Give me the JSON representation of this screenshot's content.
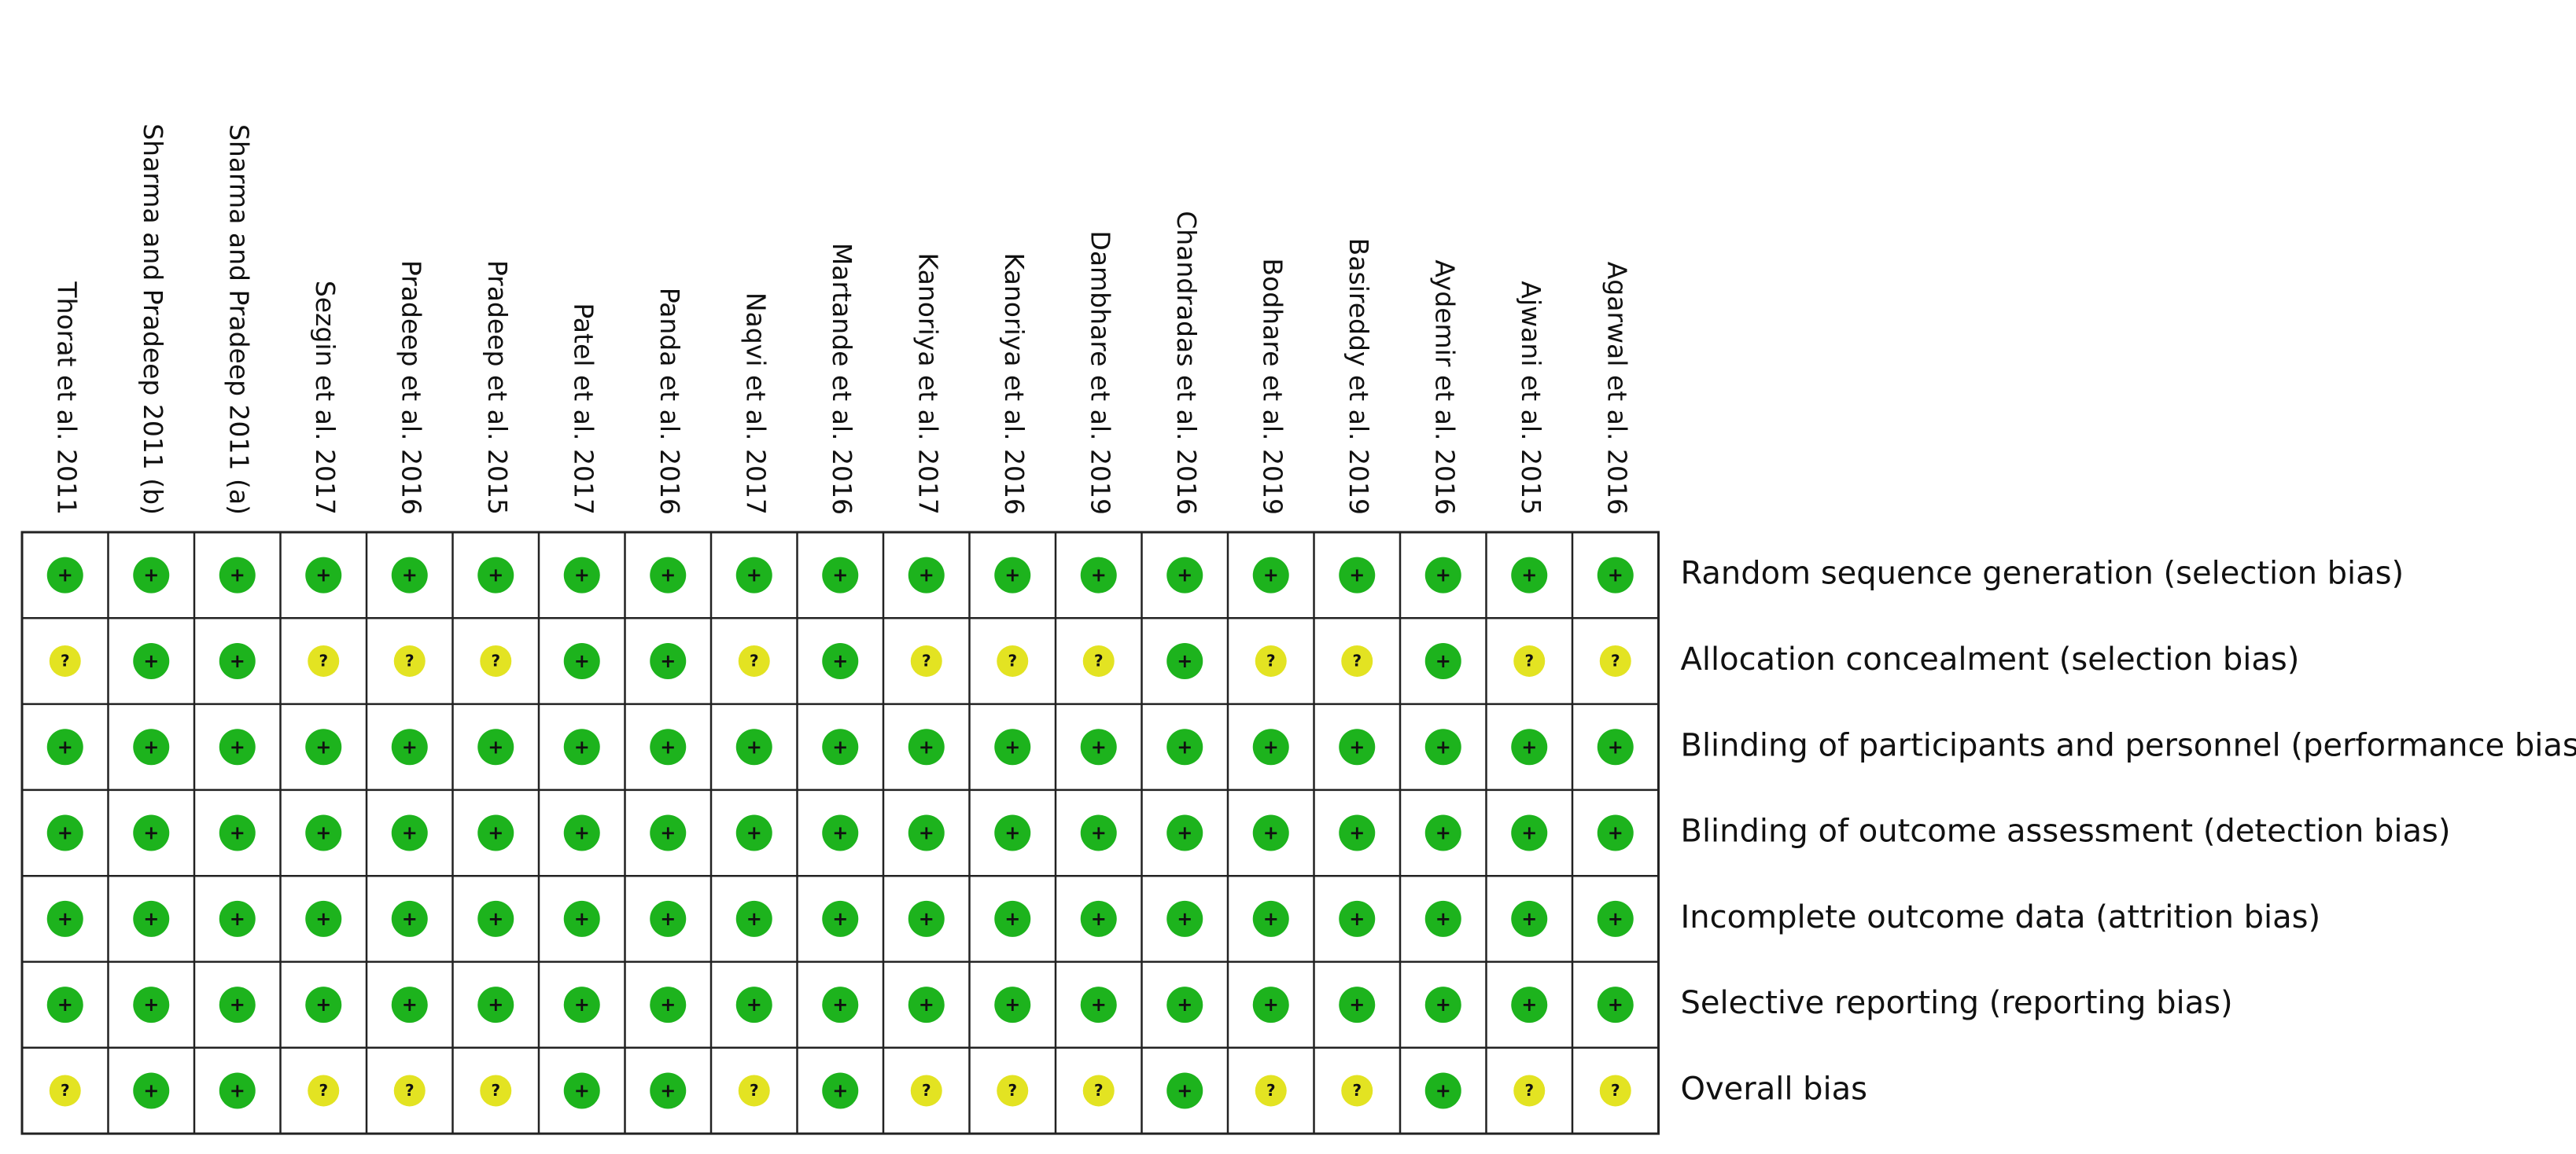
{
  "chart_data": {
    "type": "table",
    "studies": [
      "Thorat et al. 2011",
      "Sharma and Pradeep 2011 (b)",
      "Sharma and Pradeep 2011 (a)",
      "Sezgin et al. 2017",
      "Pradeep et al. 2016",
      "Pradeep et al. 2015",
      "Patel et al. 2017",
      "Panda et al. 2016",
      "Naqvi et al. 2017",
      "Martande et al. 2016",
      "Kanoriya et al. 2017",
      "Kanoriya et al. 2016",
      "Dambhare et al. 2019",
      "Chandradas et al. 2016",
      "Bodhare et al. 2019",
      "Basireddy et al. 2019",
      "Aydemir et al. 2016",
      "Ajwani et al. 2015",
      "Agarwal et al. 2016"
    ],
    "domains": [
      "Random sequence generation (selection bias)",
      "Allocation concealment (selection bias)",
      "Blinding of participants and personnel (performance bias)",
      "Blinding of outcome assessment (detection bias)",
      "Incomplete outcome data (attrition bias)",
      "Selective reporting (reporting bias)",
      "Overall bias"
    ],
    "legend": {
      "low": {
        "symbol": "+",
        "color": "#1db31d",
        "icon": "plus-icon"
      },
      "unclear": {
        "symbol": "?",
        "color": "#e3e322",
        "icon": "question-icon"
      }
    },
    "judgements": [
      [
        "low",
        "low",
        "low",
        "low",
        "low",
        "low",
        "low",
        "low",
        "low",
        "low",
        "low",
        "low",
        "low",
        "low",
        "low",
        "low",
        "low",
        "low",
        "low"
      ],
      [
        "unclear",
        "low",
        "low",
        "unclear",
        "unclear",
        "unclear",
        "low",
        "low",
        "unclear",
        "low",
        "unclear",
        "unclear",
        "unclear",
        "low",
        "unclear",
        "unclear",
        "low",
        "unclear",
        "unclear"
      ],
      [
        "low",
        "low",
        "low",
        "low",
        "low",
        "low",
        "low",
        "low",
        "low",
        "low",
        "low",
        "low",
        "low",
        "low",
        "low",
        "low",
        "low",
        "low",
        "low"
      ],
      [
        "low",
        "low",
        "low",
        "low",
        "low",
        "low",
        "low",
        "low",
        "low",
        "low",
        "low",
        "low",
        "low",
        "low",
        "low",
        "low",
        "low",
        "low",
        "low"
      ],
      [
        "low",
        "low",
        "low",
        "low",
        "low",
        "low",
        "low",
        "low",
        "low",
        "low",
        "low",
        "low",
        "low",
        "low",
        "low",
        "low",
        "low",
        "low",
        "low"
      ],
      [
        "low",
        "low",
        "low",
        "low",
        "low",
        "low",
        "low",
        "low",
        "low",
        "low",
        "low",
        "low",
        "low",
        "low",
        "low",
        "low",
        "low",
        "low",
        "low"
      ],
      [
        "unclear",
        "low",
        "low",
        "unclear",
        "unclear",
        "unclear",
        "low",
        "low",
        "unclear",
        "low",
        "unclear",
        "unclear",
        "unclear",
        "low",
        "unclear",
        "unclear",
        "low",
        "unclear",
        "unclear"
      ]
    ]
  }
}
